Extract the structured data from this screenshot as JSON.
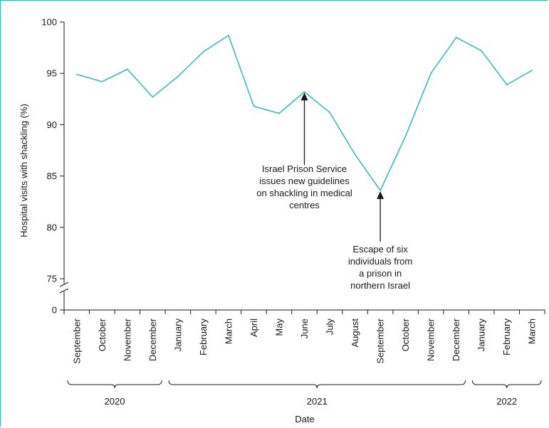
{
  "chart_data": {
    "type": "line",
    "xlabel": "Date",
    "ylabel": "Hospital visits with shackling (%)",
    "ylim": [
      75,
      100
    ],
    "y_axis_break": true,
    "y_ticks": [
      "0",
      "75",
      "80",
      "85",
      "90",
      "95",
      "100"
    ],
    "categories": [
      "September",
      "October",
      "November",
      "December",
      "January",
      "February",
      "March",
      "April",
      "May",
      "June",
      "July",
      "August",
      "September",
      "October",
      "November",
      "December",
      "January",
      "February",
      "March"
    ],
    "year_groups": [
      {
        "label": "2020",
        "start": 0,
        "end": 3
      },
      {
        "label": "2021",
        "start": 4,
        "end": 15
      },
      {
        "label": "2022",
        "start": 16,
        "end": 18
      }
    ],
    "series": [
      {
        "color": "#35b5bd",
        "values": [
          94.9,
          94.2,
          95.4,
          92.7,
          94.7,
          97.1,
          98.7,
          91.8,
          91.1,
          93.2,
          91.2,
          87.1,
          83.6,
          88.9,
          95.0,
          98.5,
          97.2,
          93.9,
          95.3
        ]
      }
    ],
    "annotations": [
      {
        "index": 9,
        "lines": [
          "Israel Prison Service",
          "issues new guidelines",
          "on shackling in medical",
          "centres"
        ]
      },
      {
        "index": 12,
        "lines": [
          "Escape of six",
          "individuals from",
          "a prison in",
          "northern Israel"
        ]
      }
    ],
    "grid": false,
    "legend": "none"
  }
}
